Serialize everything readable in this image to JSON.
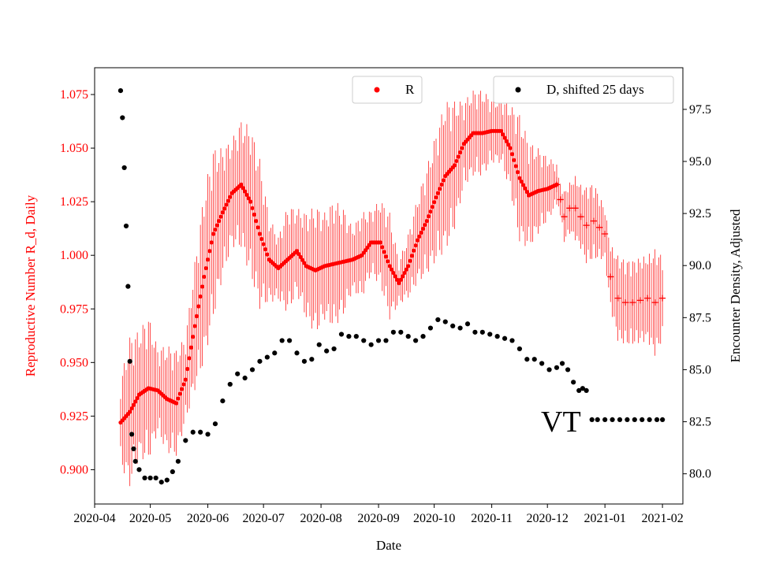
{
  "chart_data": {
    "type": "scatter",
    "xlabel": "Date",
    "ylabel_left": "Reproductive Number R_d, Daily",
    "ylabel_right": "Encounter Density, Adjusted",
    "ylim_left": [
      0.884,
      1.0875
    ],
    "ylim_right": [
      78.55,
      99.5
    ],
    "xlim": [
      "2020-04-01",
      "2021-02-12"
    ],
    "x_ticks": [
      "2020-04",
      "2020-05",
      "2020-06",
      "2020-07",
      "2020-08",
      "2020-09",
      "2020-10",
      "2020-11",
      "2020-12",
      "2021-01",
      "2021-02"
    ],
    "x_tick_dates": [
      "2020-04-01",
      "2020-05-01",
      "2020-06-01",
      "2020-07-01",
      "2020-08-01",
      "2020-09-01",
      "2020-10-01",
      "2020-11-01",
      "2020-12-01",
      "2021-01-01",
      "2021-02-01"
    ],
    "y_ticks_left": [
      "0.900",
      "0.925",
      "0.950",
      "0.975",
      "1.000",
      "1.025",
      "1.050",
      "1.075"
    ],
    "y_ticks_right": [
      "80.0",
      "82.5",
      "85.0",
      "87.5",
      "90.0",
      "92.5",
      "95.0",
      "97.5"
    ],
    "legend": [
      {
        "label": "R",
        "color": "#ff0000",
        "position": "top-center"
      },
      {
        "label": "D, shifted 25 days",
        "color": "#000000",
        "position": "top-right"
      }
    ],
    "annotation": "VT",
    "colors": {
      "r_series": "#ff0000",
      "d_series": "#000000",
      "left_axis_text": "#ff0000"
    },
    "series": [
      {
        "name": "R",
        "axis": "left",
        "marker": "dot",
        "x": [
          "2020-04-15",
          "2020-04-20",
          "2020-04-25",
          "2020-04-30",
          "2020-05-05",
          "2020-05-10",
          "2020-05-15",
          "2020-05-20",
          "2020-05-25",
          "2020-05-30",
          "2020-06-04",
          "2020-06-09",
          "2020-06-14",
          "2020-06-19",
          "2020-06-24",
          "2020-06-29",
          "2020-07-04",
          "2020-07-09",
          "2020-07-14",
          "2020-07-19",
          "2020-07-24",
          "2020-07-29",
          "2020-08-03",
          "2020-08-08",
          "2020-08-13",
          "2020-08-18",
          "2020-08-23",
          "2020-08-28",
          "2020-09-02",
          "2020-09-07",
          "2020-09-12",
          "2020-09-17",
          "2020-09-22",
          "2020-09-27",
          "2020-10-02",
          "2020-10-07",
          "2020-10-12",
          "2020-10-17",
          "2020-10-22",
          "2020-10-27",
          "2020-11-01",
          "2020-11-06",
          "2020-11-11",
          "2020-11-16",
          "2020-11-21",
          "2020-11-26",
          "2020-12-01",
          "2020-12-06"
        ],
        "values": [
          0.922,
          0.927,
          0.935,
          0.938,
          0.937,
          0.933,
          0.931,
          0.942,
          0.967,
          0.99,
          1.01,
          1.02,
          1.029,
          1.033,
          1.025,
          1.01,
          0.998,
          0.994,
          0.998,
          1.002,
          0.995,
          0.993,
          0.995,
          0.996,
          0.997,
          0.998,
          1.0,
          1.006,
          1.006,
          0.995,
          0.987,
          0.995,
          1.007,
          1.016,
          1.027,
          1.037,
          1.042,
          1.052,
          1.057,
          1.057,
          1.058,
          1.058,
          1.05,
          1.036,
          1.028,
          1.03,
          1.031,
          1.033
        ],
        "error": [
          0.02,
          0.035,
          0.03,
          0.034,
          0.02,
          0.025,
          0.025,
          0.02,
          0.03,
          0.04,
          0.04,
          0.03,
          0.025,
          0.03,
          0.035,
          0.035,
          0.02,
          0.015,
          0.025,
          0.02,
          0.025,
          0.03,
          0.025,
          0.03,
          0.025,
          0.015,
          0.02,
          0.015,
          0.02,
          0.025,
          0.01,
          0.015,
          0.02,
          0.025,
          0.03,
          0.035,
          0.03,
          0.02,
          0.02,
          0.02,
          0.015,
          0.015,
          0.02,
          0.03,
          0.025,
          0.02,
          0.015,
          0.01
        ]
      },
      {
        "name": "R (projected)",
        "axis": "left",
        "marker": "plus",
        "x": [
          "2020-12-06",
          "2020-12-08",
          "2020-12-10",
          "2020-12-13",
          "2020-12-16",
          "2020-12-19",
          "2020-12-22",
          "2020-12-26",
          "2020-12-29",
          "2021-01-01",
          "2021-01-04",
          "2021-01-08",
          "2021-01-12",
          "2021-01-16",
          "2021-01-20",
          "2021-01-24",
          "2021-01-28",
          "2021-02-01"
        ],
        "values": [
          1.033,
          1.026,
          1.018,
          1.022,
          1.022,
          1.018,
          1.014,
          1.016,
          1.013,
          1.01,
          0.99,
          0.98,
          0.978,
          0.978,
          0.979,
          0.98,
          0.978,
          0.98
        ],
        "error": [
          0.006,
          0.008,
          0.012,
          0.012,
          0.015,
          0.015,
          0.018,
          0.018,
          0.015,
          0.012,
          0.015,
          0.02,
          0.02,
          0.02,
          0.02,
          0.02,
          0.025,
          0.02
        ]
      },
      {
        "name": "D, shifted 25 days",
        "axis": "right",
        "marker": "dot",
        "x": [
          "2020-04-15",
          "2020-04-16",
          "2020-04-17",
          "2020-04-18",
          "2020-04-19",
          "2020-04-20",
          "2020-04-21",
          "2020-04-22",
          "2020-04-23",
          "2020-04-25",
          "2020-04-28",
          "2020-05-01",
          "2020-05-04",
          "2020-05-07",
          "2020-05-10",
          "2020-05-13",
          "2020-05-16",
          "2020-05-20",
          "2020-05-24",
          "2020-05-28",
          "2020-06-01",
          "2020-06-05",
          "2020-06-09",
          "2020-06-13",
          "2020-06-17",
          "2020-06-21",
          "2020-06-25",
          "2020-06-29",
          "2020-07-03",
          "2020-07-07",
          "2020-07-11",
          "2020-07-15",
          "2020-07-19",
          "2020-07-23",
          "2020-07-27",
          "2020-07-31",
          "2020-08-04",
          "2020-08-08",
          "2020-08-12",
          "2020-08-16",
          "2020-08-20",
          "2020-08-24",
          "2020-08-28",
          "2020-09-01",
          "2020-09-05",
          "2020-09-09",
          "2020-09-13",
          "2020-09-17",
          "2020-09-21",
          "2020-09-25",
          "2020-09-29",
          "2020-10-03",
          "2020-10-07",
          "2020-10-11",
          "2020-10-15",
          "2020-10-19",
          "2020-10-23",
          "2020-10-27",
          "2020-10-31",
          "2020-11-04",
          "2020-11-08",
          "2020-11-12",
          "2020-11-16",
          "2020-11-20",
          "2020-11-24",
          "2020-11-28",
          "2020-12-02",
          "2020-12-06",
          "2020-12-09",
          "2020-12-12",
          "2020-12-15",
          "2020-12-18",
          "2020-12-20",
          "2020-12-22",
          "2020-12-25",
          "2020-12-28",
          "2021-01-01",
          "2021-01-05",
          "2021-01-09",
          "2021-01-13",
          "2021-01-17",
          "2021-01-21",
          "2021-01-25",
          "2021-01-29",
          "2021-02-01"
        ],
        "values": [
          98.4,
          97.1,
          94.7,
          91.9,
          89.0,
          85.4,
          81.9,
          81.2,
          80.6,
          80.2,
          79.8,
          79.8,
          79.8,
          79.6,
          79.7,
          80.1,
          80.6,
          81.6,
          82.0,
          82.0,
          81.9,
          82.4,
          83.5,
          84.3,
          84.8,
          84.6,
          85.0,
          85.4,
          85.6,
          85.8,
          86.4,
          86.4,
          85.8,
          85.4,
          85.5,
          86.2,
          85.9,
          86.0,
          86.7,
          86.6,
          86.6,
          86.4,
          86.2,
          86.4,
          86.4,
          86.8,
          86.8,
          86.6,
          86.4,
          86.6,
          87.0,
          87.4,
          87.3,
          87.1,
          87.0,
          87.2,
          86.8,
          86.8,
          86.7,
          86.6,
          86.5,
          86.4,
          86.0,
          85.5,
          85.5,
          85.3,
          85.0,
          85.1,
          85.3,
          85.0,
          84.4,
          84.0,
          84.1,
          84.0,
          82.6,
          82.6,
          82.6,
          82.6,
          82.6,
          82.6,
          82.6,
          82.6,
          82.6,
          82.6,
          82.6
        ]
      }
    ]
  }
}
